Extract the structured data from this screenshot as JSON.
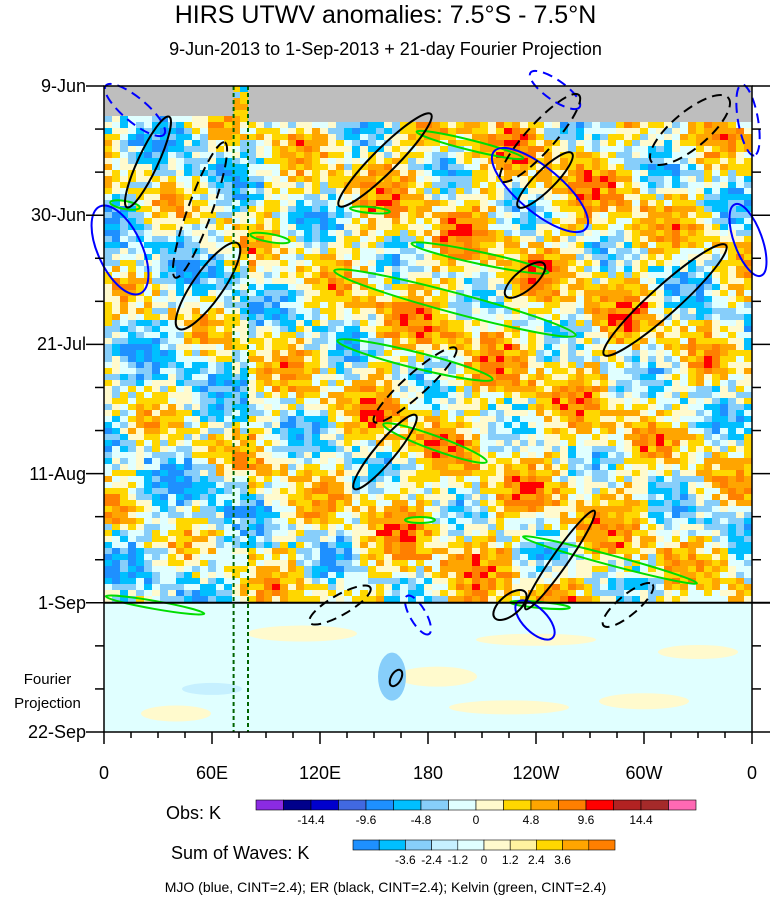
{
  "chart_data": {
    "type": "heatmap",
    "title": "HIRS UTWV anomalies: 7.5°S - 7.5°N",
    "subtitle": "9-Jun-2013 to 1-Sep-2013 + 21-day Fourier Projection",
    "x_ticks": [
      "0",
      "60E",
      "120E",
      "180",
      "120W",
      "60W",
      "0"
    ],
    "x_values": [
      0,
      60,
      120,
      180,
      240,
      300,
      360
    ],
    "y_ticks": [
      "9-Jun",
      "30-Jun",
      "21-Jul",
      "11-Aug",
      "1-Sep",
      "22-Sep"
    ],
    "y_values": [
      0,
      21,
      42,
      63,
      84,
      105
    ],
    "xlim": [
      0,
      360
    ],
    "ylim": [
      0,
      105
    ],
    "observation_end_day": 84,
    "projection_label_line1": "Fourier",
    "projection_label_line2": "Projection",
    "reference_longitudes": [
      72,
      80
    ],
    "obs_colorbar": {
      "label": "Obs: K",
      "ticks": [
        "-14.4",
        "-9.6",
        "-4.8",
        "0",
        "4.8",
        "9.6",
        "14.4"
      ],
      "colors": [
        "#8b2be2",
        "#00008b",
        "#0000cd",
        "#4169e1",
        "#1e90ff",
        "#00bfff",
        "#87cefa",
        "#e0ffff",
        "#fffacd",
        "#ffd700",
        "#ffa500",
        "#ff7f00",
        "#ff0000",
        "#b22222",
        "#a52a2a",
        "#ff69b4"
      ]
    },
    "waves_colorbar": {
      "label": "Sum of Waves: K",
      "ticks": [
        "-3.6",
        "-2.4",
        "-1.2",
        "0",
        "1.2",
        "2.4",
        "3.6"
      ],
      "colors": [
        "#1e90ff",
        "#00bfff",
        "#87cefa",
        "#c6f0ff",
        "#e0ffff",
        "#fffacd",
        "#fff3a0",
        "#ffd700",
        "#ffa500",
        "#ff7f00"
      ]
    },
    "legend_text": "MJO (blue, CINT=2.4); ER (black, CINT=2.4); Kelvin (green, CINT=2.4)",
    "colors": {
      "mjo": "#0000ff",
      "er": "#000000",
      "kelvin": "#00dd00",
      "missing": "#bebebe",
      "reference_line": "#006400"
    }
  }
}
